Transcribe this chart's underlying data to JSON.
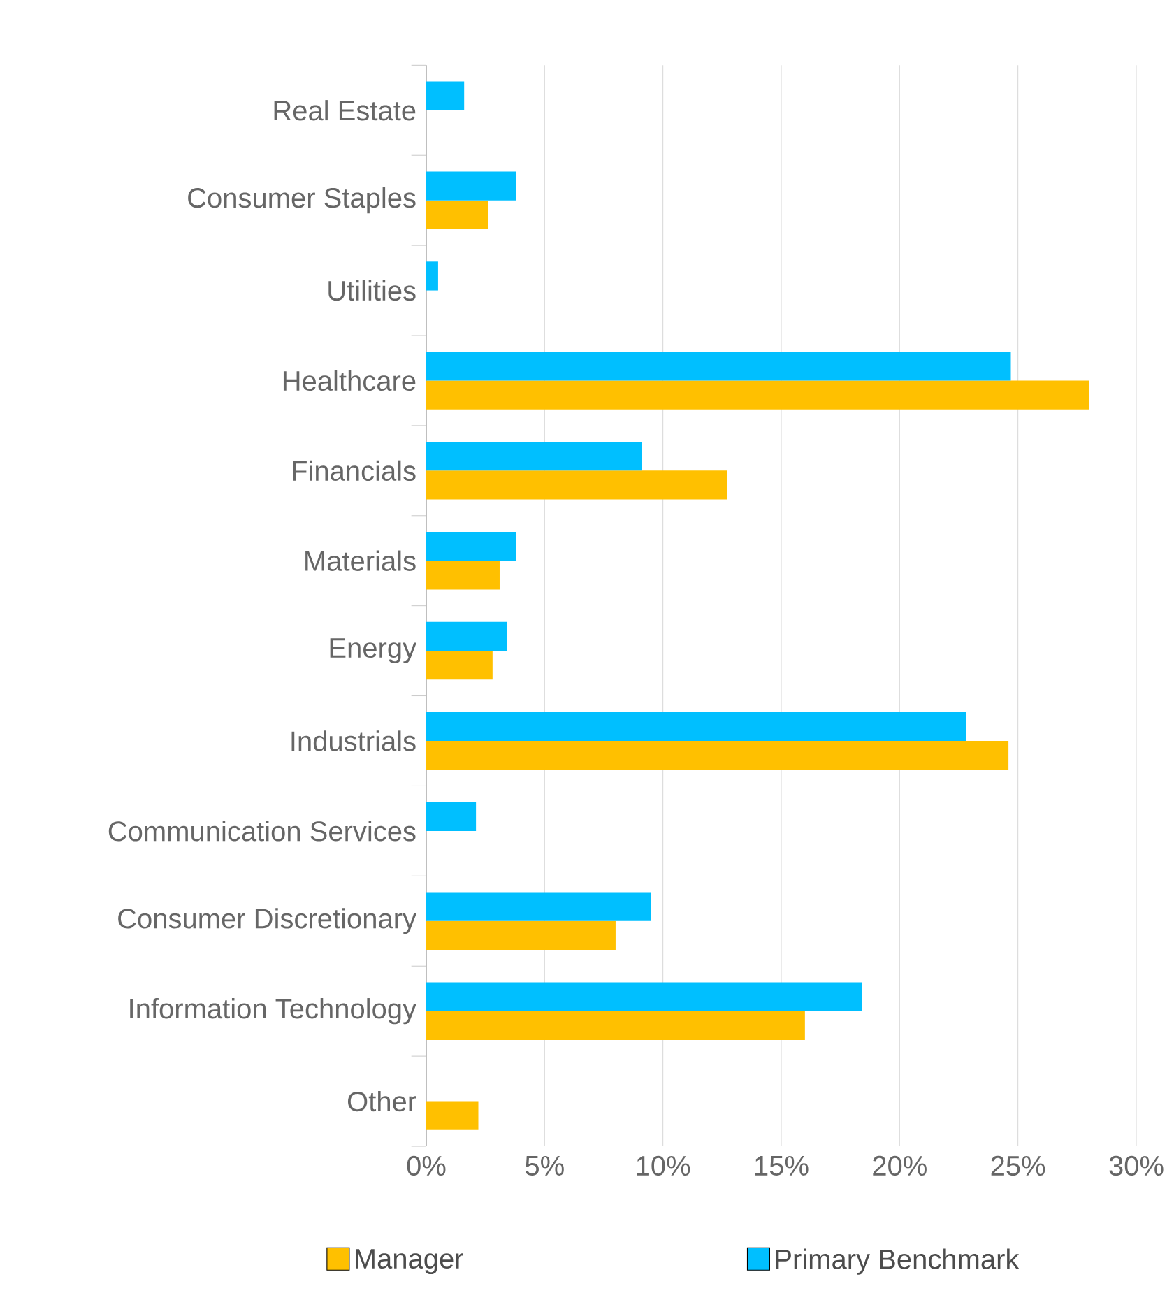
{
  "chart_data": {
    "type": "bar",
    "orientation": "horizontal",
    "categories": [
      "Real Estate",
      "Consumer Staples",
      "Utilities",
      "Healthcare",
      "Financials",
      "Materials",
      "Energy",
      "Industrials",
      "Communication Services",
      "Consumer Discretionary",
      "Information Technology",
      "Other"
    ],
    "series": [
      {
        "name": "Manager",
        "color": "#ffc000",
        "values": [
          null,
          2.6,
          null,
          28.0,
          12.7,
          3.1,
          2.8,
          24.6,
          null,
          8.0,
          16.0,
          2.2
        ]
      },
      {
        "name": "Primary Benchmark",
        "color": "#00bfff",
        "values": [
          1.6,
          3.8,
          0.5,
          24.7,
          9.1,
          3.8,
          3.4,
          22.8,
          2.1,
          9.5,
          18.4,
          null
        ]
      }
    ],
    "xlim": [
      0,
      30
    ],
    "xticks": [
      {
        "value": 0,
        "label": "0%"
      },
      {
        "value": 5,
        "label": "5%"
      },
      {
        "value": 10,
        "label": "10%"
      },
      {
        "value": 15,
        "label": "15%"
      },
      {
        "value": 20,
        "label": "20%"
      },
      {
        "value": 25,
        "label": "25%"
      },
      {
        "value": 30,
        "label": "30%"
      }
    ],
    "grid": "x",
    "legend": "bottom"
  }
}
